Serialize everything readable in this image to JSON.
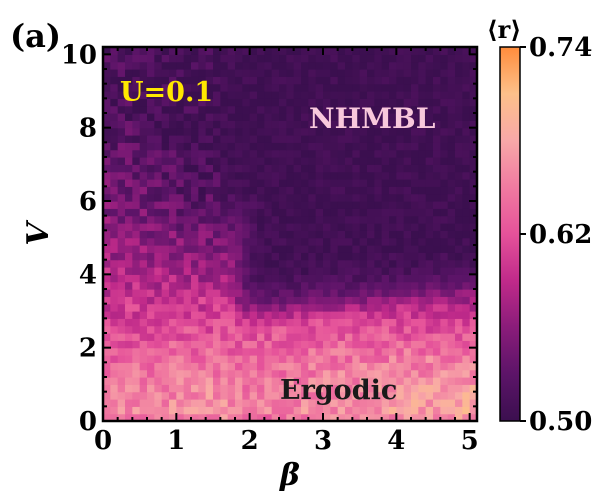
{
  "chart_data": {
    "type": "heatmap",
    "panel_label": "(a)",
    "xlabel": "β",
    "ylabel": "V",
    "xlim": [
      0,
      5.1
    ],
    "ylim": [
      0,
      10.2
    ],
    "x_ticks": [
      0,
      1,
      2,
      3,
      4,
      5
    ],
    "y_ticks": [
      0,
      2,
      4,
      6,
      8,
      10
    ],
    "x_tick_labels": [
      "0",
      "1",
      "2",
      "3",
      "4",
      "5"
    ],
    "y_tick_labels": [
      "0",
      "2",
      "4",
      "6",
      "8",
      "10"
    ],
    "grid": {
      "nx": 51,
      "ny": 51,
      "x_step": 0.1,
      "y_step": 0.2
    },
    "colorbar": {
      "label": "⟨r⟩",
      "min": 0.5,
      "max": 0.74,
      "tick_values": [
        0.5,
        0.62,
        0.74
      ],
      "tick_labels": [
        "0.50",
        "0.62",
        "0.74"
      ],
      "colormap": [
        "#3b0f4f",
        "#5c1468",
        "#8a1c7a",
        "#c02a8a",
        "#e5529a",
        "#f07aa0",
        "#f8a8a8",
        "#fdc08a",
        "#ff8c3c"
      ]
    },
    "annotations": [
      {
        "text": "U=0.1",
        "color": "#ffe800"
      },
      {
        "text": "NHMBL",
        "color": "#f8c8dc"
      },
      {
        "text": "Ergodic",
        "color": "#1a1a1a"
      }
    ],
    "regions": {
      "NHMBL_mean_r": 0.51,
      "Ergodic_mean_r": 0.67,
      "boundary_note": "transition near β≈1.7 for V≥4 and V≈3.2 for β≥2"
    }
  }
}
